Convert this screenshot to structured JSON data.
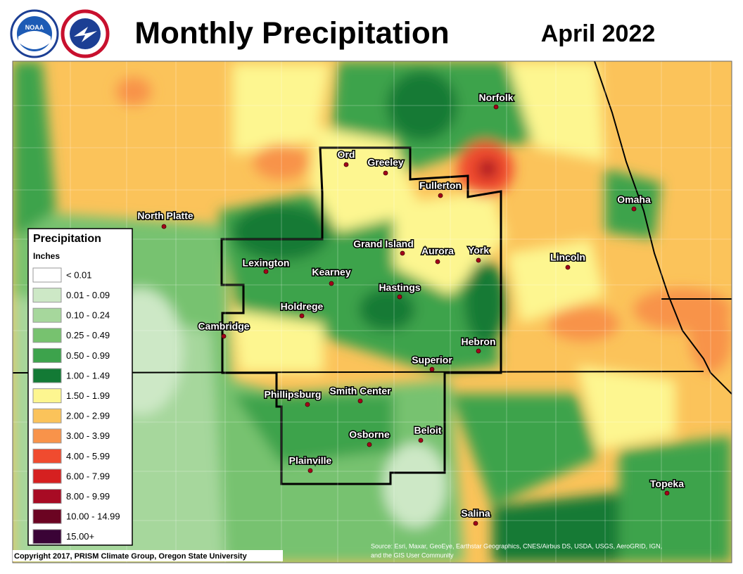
{
  "header": {
    "title": "Monthly Precipitation",
    "date": "April 2022",
    "logo_text": "NOAA"
  },
  "legend": {
    "title": "Precipitation",
    "units": "Inches",
    "items": [
      {
        "label": "< 0.01",
        "color": "#ffffff"
      },
      {
        "label": "0.01 - 0.09",
        "color": "#cde8c6"
      },
      {
        "label": "0.10 - 0.24",
        "color": "#a6d79c"
      },
      {
        "label": "0.25 - 0.49",
        "color": "#77c26f"
      },
      {
        "label": "0.50 - 0.99",
        "color": "#3da34c"
      },
      {
        "label": "1.00 - 1.49",
        "color": "#137a35"
      },
      {
        "label": "1.50 - 1.99",
        "color": "#fdf690"
      },
      {
        "label": "2.00 - 2.99",
        "color": "#fbc35a"
      },
      {
        "label": "3.00 - 3.99",
        "color": "#f8934a"
      },
      {
        "label": "4.00 - 5.99",
        "color": "#f04b2f"
      },
      {
        "label": "6.00 - 7.99",
        "color": "#d62020"
      },
      {
        "label": "8.00 - 9.99",
        "color": "#a80b24"
      },
      {
        "label": "10.00 - 14.99",
        "color": "#6b0422"
      },
      {
        "label": "15.00+",
        "color": "#3a0336"
      }
    ]
  },
  "cities": [
    "North Platte",
    "Ord",
    "Greeley",
    "Norfolk",
    "Fullerton",
    "Omaha",
    "Lexington",
    "Grand Island",
    "Aurora",
    "York",
    "Lincoln",
    "Kearney",
    "Hastings",
    "Holdrege",
    "Cambridge",
    "Hebron",
    "Superior",
    "Phillipsburg",
    "Smith Center",
    "Osborne",
    "Beloit",
    "Plainville",
    "Topeka",
    "Salina"
  ],
  "credits": {
    "copyright": "Copyright 2017, PRISM Climate Group, Oregon State University",
    "source": [
      "Source: Esri, Maxar, GeoEye, Earthstar Geographics, CNES/Airbus DS, USDA, USGS, AeroGRID, IGN,",
      "and the GIS User Community"
    ]
  }
}
